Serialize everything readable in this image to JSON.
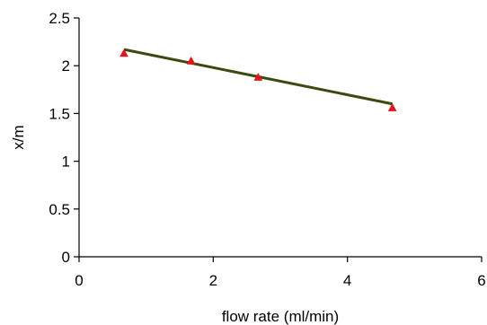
{
  "chart_data": {
    "type": "scatter",
    "title": "",
    "xlabel": "flow rate (ml/min)",
    "ylabel": "x/m",
    "xlim": [
      0,
      6
    ],
    "ylim": [
      0,
      2.5
    ],
    "x_ticks": [
      "0",
      "2",
      "4",
      "6"
    ],
    "y_ticks": [
      "0",
      "0.5",
      "1",
      "1.5",
      "2",
      "2.5"
    ],
    "grid": false,
    "legend": "none",
    "series": [
      {
        "type": "scatter",
        "marker": "triangle",
        "color": "#e8131b",
        "x": [
          0.67,
          1.67,
          2.67,
          4.67
        ],
        "y": [
          2.13,
          2.05,
          1.88,
          1.56
        ]
      }
    ],
    "trendline": {
      "color": "#3b4a10",
      "x": [
        0.67,
        4.67
      ],
      "y": [
        2.17,
        1.6
      ]
    }
  }
}
